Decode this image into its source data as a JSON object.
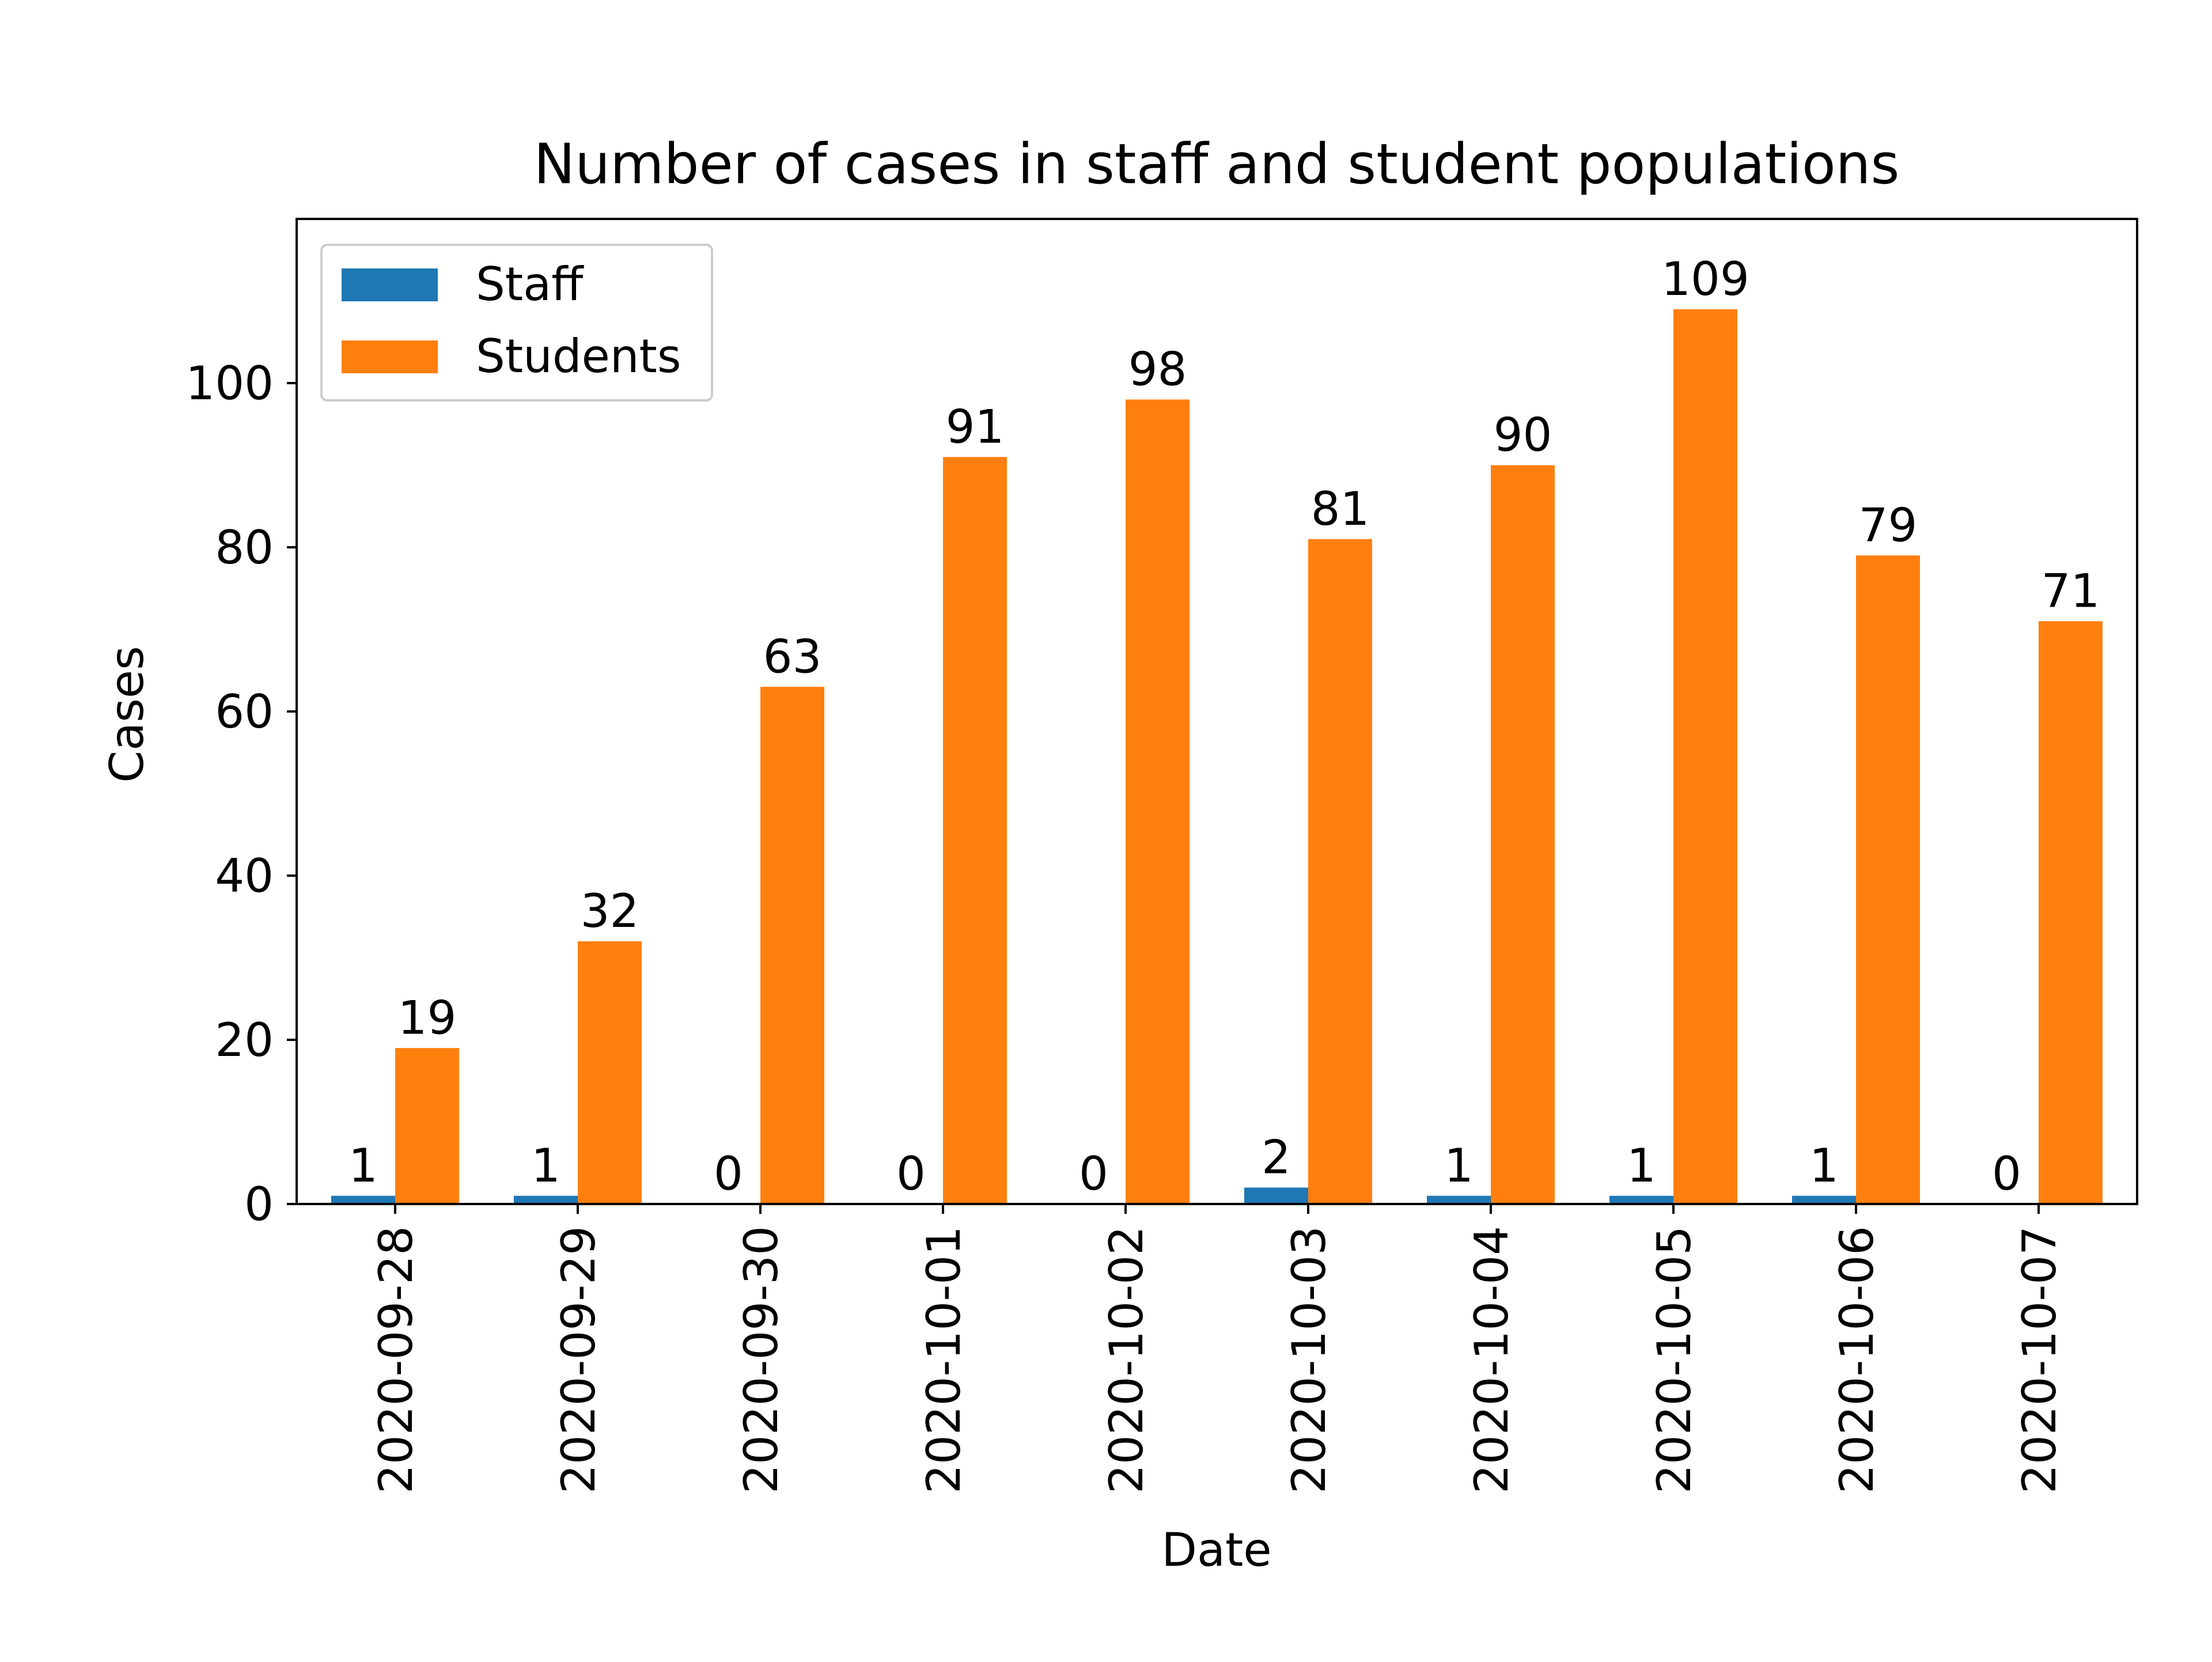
{
  "chart_data": {
    "type": "bar",
    "title": "Number of cases in staff and student populations",
    "xlabel": "Date",
    "ylabel": "Cases",
    "categories": [
      "2020-09-28",
      "2020-09-29",
      "2020-09-30",
      "2020-10-01",
      "2020-10-02",
      "2020-10-03",
      "2020-10-04",
      "2020-10-05",
      "2020-10-06",
      "2020-10-07"
    ],
    "series": [
      {
        "name": "Staff",
        "color": "#1f77b4",
        "values": [
          1,
          1,
          0,
          0,
          0,
          2,
          1,
          1,
          1,
          0
        ]
      },
      {
        "name": "Students",
        "color": "#ff7f0e",
        "values": [
          19,
          32,
          63,
          91,
          98,
          81,
          90,
          109,
          79,
          71
        ]
      }
    ],
    "ylim": [
      0,
      120
    ],
    "yticks": [
      0,
      20,
      40,
      60,
      80,
      100
    ],
    "legend": "top-left",
    "grid": false,
    "data_labels": true
  }
}
